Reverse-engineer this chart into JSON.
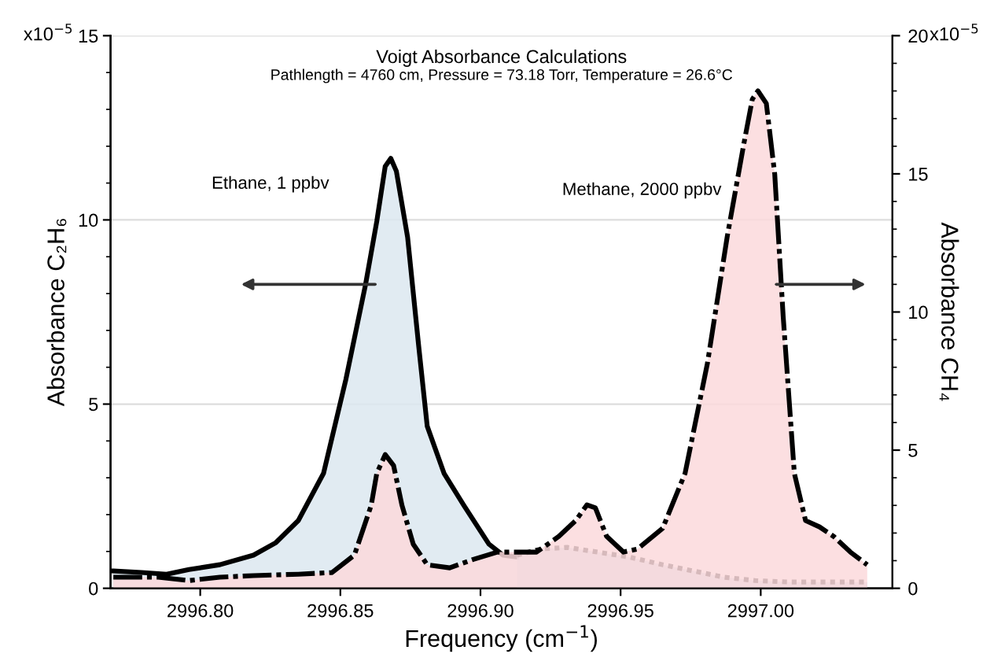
{
  "chart_data": {
    "type": "area",
    "title": "Voigt Absorbance Calculations",
    "subtitle": "Pathlength = 4760 cm, Pressure = 73.18 Torr, Temperature = 26.6°C",
    "xlabel": "Frequency (cm$^{−1}$)",
    "ylabel": "Absorbance C₂H₆",
    "y2label": "Absorbance CH₄",
    "series": [
      {
        "name": "Ethane, 1 ppbv",
        "color": "#dce8f0",
        "line_style": "solid",
        "axis": "y",
        "x": [
          2996.769,
          2996.779,
          2996.788,
          2996.796,
          2996.807,
          2996.819,
          2996.827,
          2996.835,
          2996.844,
          2996.852,
          2996.859,
          2996.863,
          2996.866,
          2996.868,
          2996.87,
          2996.874,
          2996.878,
          2996.881,
          2996.887,
          2996.894,
          2996.903,
          2996.908,
          2996.913
        ],
        "values": [
          0.47,
          0.43,
          0.38,
          0.51,
          0.64,
          0.9,
          1.24,
          1.84,
          3.12,
          5.68,
          8.25,
          9.96,
          11.45,
          11.67,
          11.32,
          9.53,
          6.54,
          4.4,
          3.12,
          2.26,
          1.2,
          0.9,
          0.85
        ]
      },
      {
        "name": "Methane, 2000 ppbv",
        "color": "#fcd9dc",
        "line_style": "dashdot",
        "axis": "y2",
        "x": [
          2996.769,
          2996.785,
          2996.796,
          2996.807,
          2996.819,
          2996.835,
          2996.847,
          2996.855,
          2996.861,
          2996.863,
          2996.866,
          2996.869,
          2996.872,
          2996.876,
          2996.881,
          2996.889,
          2996.897,
          2996.906,
          2996.914,
          2996.92,
          2996.928,
          2996.934,
          2996.938,
          2996.941,
          2996.945,
          2996.951,
          2996.956,
          2996.965,
          2996.973,
          2996.981,
          2996.988,
          2996.994,
          2996.997,
          2996.999,
          2997.002,
          2997.005,
          2997.008,
          2997.012,
          2997.016,
          2997.021,
          2997.026,
          2997.032,
          2997.038
        ],
        "values": [
          0.4,
          0.4,
          0.28,
          0.4,
          0.46,
          0.51,
          0.57,
          1.2,
          3.0,
          4.16,
          4.84,
          4.44,
          3.0,
          1.6,
          0.85,
          0.74,
          1.03,
          1.31,
          1.31,
          1.31,
          1.88,
          2.45,
          3.02,
          2.91,
          1.88,
          1.31,
          1.42,
          2.17,
          4.16,
          8.15,
          12.7,
          16.1,
          17.7,
          18.0,
          17.55,
          14.99,
          9.86,
          4.16,
          2.45,
          2.22,
          1.88,
          1.31,
          0.85
        ]
      },
      {
        "color": "#bcd5e2",
        "line_style": "dotted",
        "axis": "y",
        "x": [
          2996.913,
          2996.922,
          2996.931,
          2996.942,
          2996.953,
          2996.965,
          2996.976,
          2996.987,
          2996.998,
          2997.01,
          2997.026,
          2997.038
        ],
        "values": [
          0.9,
          1.07,
          1.11,
          0.98,
          0.85,
          0.64,
          0.47,
          0.3,
          0.21,
          0.17,
          0.17,
          0.17
        ]
      }
    ],
    "xlim": [
      2996.768,
      2997.047
    ],
    "xticks": [
      {
        "value": 2996.8,
        "label": "2996.80"
      },
      {
        "value": 2996.85,
        "label": "2996.85"
      },
      {
        "value": 2996.9,
        "label": "2996.90"
      },
      {
        "value": 2996.95,
        "label": "2996.95"
      },
      {
        "value": 2997.0,
        "label": "2997.00"
      }
    ],
    "ylim": [
      0,
      15
    ],
    "yticks": [
      0,
      5,
      10,
      15
    ],
    "y2lim": [
      0,
      20
    ],
    "y2ticks": [
      0,
      5,
      10,
      15,
      20
    ],
    "grid": "y",
    "annotations": [
      "x10$^{−5}$",
      "x10$^{−5}$"
    ]
  }
}
